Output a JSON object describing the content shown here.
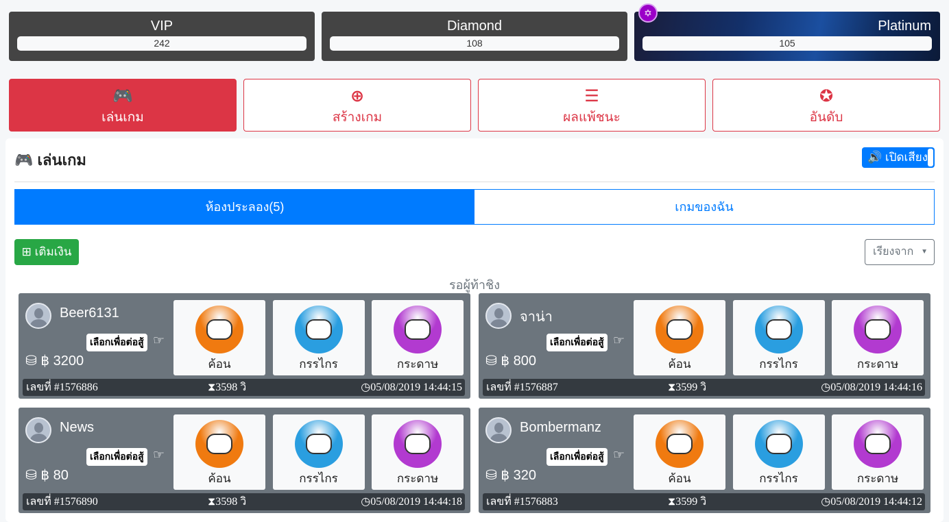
{
  "tiers": [
    {
      "name": "VIP",
      "value": "242"
    },
    {
      "name": "Diamond",
      "value": "108"
    },
    {
      "name": "Platinum",
      "value": "105"
    }
  ],
  "nav": [
    {
      "label": "เล่นเกม",
      "icon": "gamepad-icon",
      "glyph": "🎮"
    },
    {
      "label": "สร้างเกม",
      "icon": "plus-circle-icon",
      "glyph": "⊕"
    },
    {
      "label": "ผลแพ้ชนะ",
      "icon": "tasks-icon",
      "glyph": "☰"
    },
    {
      "label": "อันดับ",
      "icon": "award-icon",
      "glyph": "✪"
    }
  ],
  "section_title": "เล่นเกม",
  "sound_label": "เปิดเสียง",
  "tabs": [
    {
      "label": "ห้องประลอง(5)"
    },
    {
      "label": "เกมของฉัน"
    }
  ],
  "topup_label": "เติมเงิน",
  "sort_label": "เรียงจาก",
  "waiting_label": "รอผู้ท้าชิง",
  "pick_label": "เลือกเพื่อต่อสู้",
  "choices": [
    {
      "label": "ค้อน",
      "color": "#f07a10"
    },
    {
      "label": "กรรไกร",
      "color": "#2a9ee0"
    },
    {
      "label": "กระดาษ",
      "color": "#b23ad0"
    }
  ],
  "games": [
    {
      "user": "Beer6131",
      "amount": "฿ 3200",
      "number": "เลขที่ #1576886",
      "time_left": "3598 วิ",
      "datetime": "05/08/2019 14:44:15"
    },
    {
      "user": "จาน่า",
      "amount": "฿ 800",
      "number": "เลขที่ #1576887",
      "time_left": "3599 วิ",
      "datetime": "05/08/2019 14:44:16"
    },
    {
      "user": "News",
      "amount": "฿ 80",
      "number": "เลขที่ #1576890",
      "time_left": "3598 วิ",
      "datetime": "05/08/2019 14:44:18"
    },
    {
      "user": "Bombermanz",
      "amount": "฿ 320",
      "number": "เลขที่ #1576883",
      "time_left": "3599 วิ",
      "datetime": "05/08/2019 14:44:12"
    }
  ]
}
